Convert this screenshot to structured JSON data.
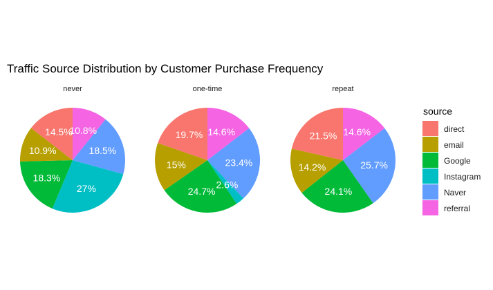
{
  "chart_data": {
    "type": "pie",
    "title": "Traffic Source Distribution by Customer Purchase Frequency",
    "legend": {
      "title": "source",
      "position": "right",
      "entries": [
        "direct",
        "email",
        "Google",
        "Instagram",
        "Naver",
        "referral"
      ]
    },
    "colors": {
      "direct": "#F8766D",
      "email": "#B79F00",
      "Google": "#00BA38",
      "Instagram": "#00BFC4",
      "Naver": "#619CFF",
      "referral": "#F564E3"
    },
    "label_color": "#ffffff",
    "panels": [
      {
        "name": "never",
        "values": [
          14.5,
          10.9,
          18.3,
          27.0,
          18.5,
          10.8
        ],
        "labels": [
          "14.5%",
          "10.9%",
          "18.3%",
          "27%",
          "18.5%",
          "10.8%"
        ]
      },
      {
        "name": "one-time",
        "values": [
          19.7,
          15.0,
          24.7,
          2.6,
          23.4,
          14.6
        ],
        "labels": [
          "19.7%",
          "15%",
          "24.7%",
          "2.6%",
          "23.4%",
          "14.6%"
        ]
      },
      {
        "name": "repeat",
        "values": [
          21.5,
          14.2,
          24.1,
          0,
          25.7,
          14.6
        ],
        "labels": [
          "21.5%",
          "14.2%",
          "24.1%",
          "",
          "25.7%",
          "14.6%"
        ]
      }
    ]
  }
}
